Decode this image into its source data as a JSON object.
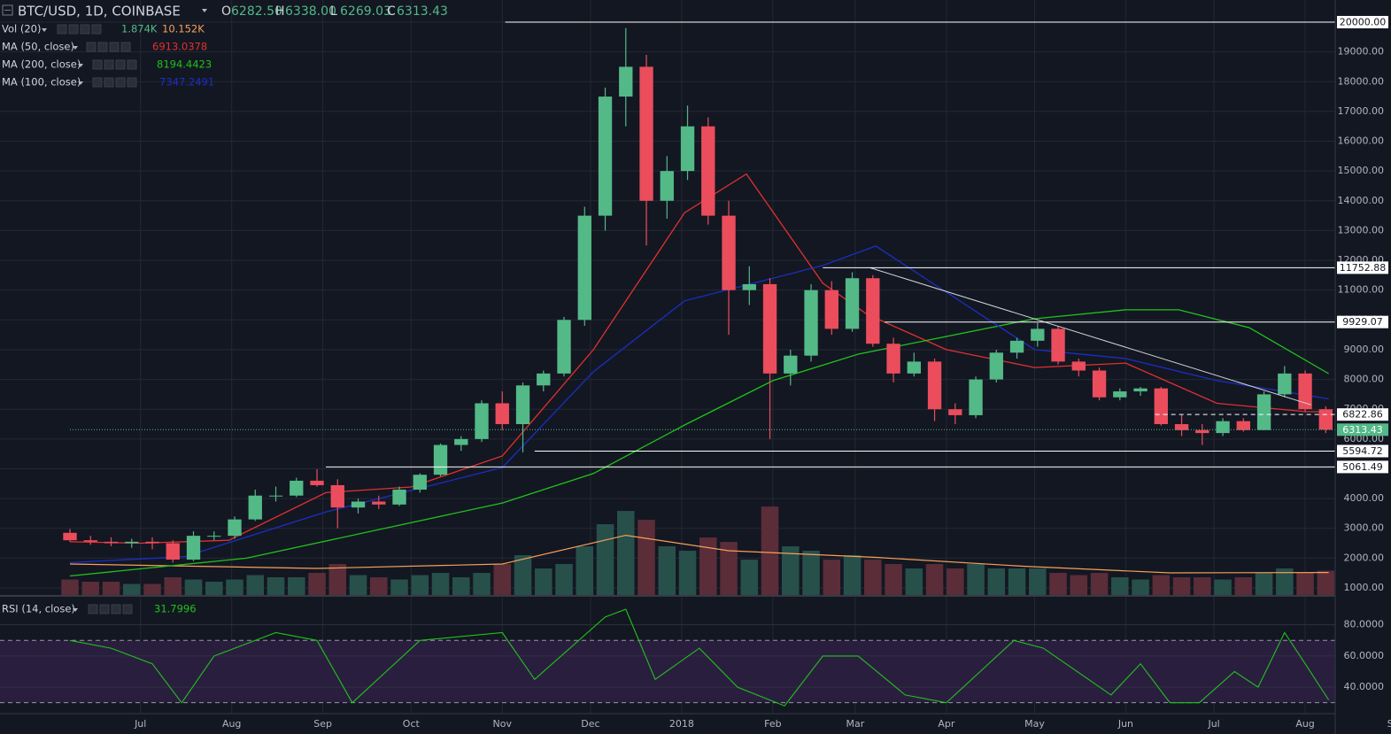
{
  "chart_data": {
    "type": "candlestick",
    "header": {
      "symbol": "BTC/USD, 1D, COINBASE",
      "ohlc": [
        {
          "key": "O",
          "text": "6282.50"
        },
        {
          "key": "H",
          "text": "6338.00"
        },
        {
          "key": "L",
          "text": "6269.03"
        },
        {
          "key": "C",
          "text": "6313.43"
        }
      ]
    },
    "xlim": [
      -24,
      430
    ],
    "xticks": [
      {
        "value": 0,
        "label": "Jul"
      },
      {
        "value": 31,
        "label": "Aug"
      },
      {
        "value": 62,
        "label": "Sep"
      },
      {
        "value": 92,
        "label": "Oct"
      },
      {
        "value": 123,
        "label": "Nov"
      },
      {
        "value": 153,
        "label": "Dec"
      },
      {
        "value": 184,
        "label": "2018"
      },
      {
        "value": 215,
        "label": "Feb"
      },
      {
        "value": 243,
        "label": "Mar"
      },
      {
        "value": 274,
        "label": "Apr"
      },
      {
        "value": 304,
        "label": "May"
      },
      {
        "value": 335,
        "label": "Jun"
      },
      {
        "value": 365,
        "label": "Jul"
      },
      {
        "value": 396,
        "label": "Aug"
      },
      {
        "value": 427,
        "label": "Sep"
      }
    ],
    "ylim": [
      762,
      20743
    ],
    "yticks": [
      {
        "value": 1000,
        "label": "1000.00"
      },
      {
        "value": 2000,
        "label": "2000.00"
      },
      {
        "value": 3000,
        "label": "3000.00"
      },
      {
        "value": 4000,
        "label": "4000.00"
      },
      {
        "value": 5000,
        "label": "5000.00"
      },
      {
        "value": 6000,
        "label": "6000.00"
      },
      {
        "value": 7000,
        "label": "7000.00"
      },
      {
        "value": 8000,
        "label": "8000.00"
      },
      {
        "value": 9000,
        "label": "9000.00"
      },
      {
        "value": 10000,
        "label": "10000.00"
      },
      {
        "value": 11000,
        "label": "11000.00"
      },
      {
        "value": 12000,
        "label": "12000.00"
      },
      {
        "value": 13000,
        "label": "13000.00"
      },
      {
        "value": 14000,
        "label": "14000.00"
      },
      {
        "value": 15000,
        "label": "15000.00"
      },
      {
        "value": 16000,
        "label": "16000.00"
      },
      {
        "value": 17000,
        "label": "17000.00"
      },
      {
        "value": 18000,
        "label": "18000.00"
      },
      {
        "value": 19000,
        "label": "19000.00"
      },
      {
        "value": 20000,
        "label": "20000.00"
      }
    ],
    "grid": true,
    "candles": {
      "up_color": "#53b987",
      "down_color": "#eb4d5c",
      "x": [
        -24,
        -17,
        -10,
        -3,
        4,
        11,
        18,
        25,
        32,
        39,
        46,
        53,
        60,
        67,
        74,
        81,
        88,
        95,
        102,
        109,
        116,
        123,
        130,
        137,
        144,
        151,
        158,
        165,
        172,
        179,
        186,
        193,
        200,
        207,
        214,
        221,
        228,
        235,
        242,
        249,
        256,
        263,
        270,
        277,
        284,
        291,
        298,
        305,
        312,
        319,
        326,
        333,
        340,
        347,
        354,
        361,
        368,
        375,
        382,
        389,
        396,
        403
      ],
      "ohlc": [
        [
          2850,
          2980,
          2550,
          2600
        ],
        [
          2600,
          2750,
          2450,
          2550
        ],
        [
          2550,
          2700,
          2400,
          2500
        ],
        [
          2500,
          2650,
          2350,
          2550
        ],
        [
          2550,
          2700,
          2300,
          2500
        ],
        [
          2500,
          2600,
          1850,
          1950
        ],
        [
          1950,
          2900,
          1900,
          2750
        ],
        [
          2750,
          2900,
          2600,
          2750
        ],
        [
          2750,
          3400,
          2650,
          3300
        ],
        [
          3300,
          4300,
          3250,
          4100
        ],
        [
          4100,
          4400,
          3900,
          4100
        ],
        [
          4100,
          4700,
          4050,
          4600
        ],
        [
          4600,
          4990,
          4400,
          4450
        ],
        [
          4450,
          4650,
          3000,
          3700
        ],
        [
          3700,
          4000,
          3500,
          3900
        ],
        [
          3900,
          4100,
          3650,
          3800
        ],
        [
          3800,
          4400,
          3750,
          4300
        ],
        [
          4300,
          4850,
          4200,
          4800
        ],
        [
          4800,
          5850,
          4750,
          5800
        ],
        [
          5800,
          6100,
          5600,
          6000
        ],
        [
          6000,
          7300,
          5900,
          7200
        ],
        [
          7200,
          7600,
          6300,
          6500
        ],
        [
          6500,
          7900,
          5550,
          7800
        ],
        [
          7800,
          8300,
          7600,
          8200
        ],
        [
          8200,
          10100,
          8100,
          10000
        ],
        [
          10000,
          13800,
          9800,
          13500
        ],
        [
          13500,
          17800,
          13000,
          17500
        ],
        [
          17500,
          19800,
          16500,
          18500
        ],
        [
          18500,
          18900,
          12500,
          14000
        ],
        [
          14000,
          15500,
          13400,
          15000
        ],
        [
          15000,
          17200,
          14700,
          16500
        ],
        [
          16500,
          16800,
          13200,
          13500
        ],
        [
          13500,
          14000,
          9500,
          11000
        ],
        [
          11000,
          11800,
          10500,
          11200
        ],
        [
          11200,
          11400,
          6000,
          8200
        ],
        [
          8200,
          9000,
          7800,
          8800
        ],
        [
          8800,
          11200,
          8600,
          11000
        ],
        [
          11000,
          11300,
          9500,
          9700
        ],
        [
          9700,
          11600,
          9600,
          11400
        ],
        [
          11400,
          11500,
          9100,
          9200
        ],
        [
          9200,
          9400,
          7900,
          8200
        ],
        [
          8200,
          8900,
          8100,
          8600
        ],
        [
          8600,
          8700,
          6600,
          7000
        ],
        [
          7000,
          7200,
          6500,
          6800
        ],
        [
          6800,
          8100,
          6700,
          8000
        ],
        [
          8000,
          9000,
          7900,
          8900
        ],
        [
          8900,
          9400,
          8700,
          9300
        ],
        [
          9300,
          9900,
          9100,
          9700
        ],
        [
          9700,
          9800,
          8500,
          8600
        ],
        [
          8600,
          8700,
          8100,
          8300
        ],
        [
          8300,
          8400,
          7300,
          7400
        ],
        [
          7400,
          7700,
          7300,
          7600
        ],
        [
          7600,
          7750,
          7450,
          7700
        ],
        [
          7700,
          7750,
          6450,
          6500
        ],
        [
          6500,
          6800,
          6100,
          6300
        ],
        [
          6300,
          6500,
          5800,
          6200
        ],
        [
          6200,
          6700,
          6100,
          6600
        ],
        [
          6600,
          6700,
          6250,
          6300
        ],
        [
          6300,
          7600,
          6300,
          7500
        ],
        [
          7500,
          8450,
          7400,
          8200
        ],
        [
          8200,
          8300,
          6900,
          7000
        ],
        [
          7000,
          7100,
          6200,
          6313.43
        ]
      ]
    },
    "volume": {
      "name": "Vol (20)",
      "labels": [
        "1.874K",
        "10.152K"
      ],
      "label_colors": [
        "#53b987",
        "#f5a05a"
      ],
      "vlim": [
        0,
        269
      ],
      "up_color": "#27504a",
      "down_color": "#5a2d38",
      "values": [
        7,
        6,
        6,
        5,
        5,
        8,
        7,
        6,
        7,
        9,
        8,
        8,
        10,
        14,
        9,
        8,
        7,
        9,
        10,
        8,
        10,
        14,
        18,
        12,
        14,
        22,
        32,
        38,
        34,
        22,
        20,
        26,
        24,
        16,
        40,
        22,
        20,
        16,
        18,
        16,
        14,
        12,
        14,
        12,
        14,
        12,
        12,
        12,
        10,
        9,
        10,
        8,
        7,
        9,
        8,
        8,
        7,
        8,
        10,
        12,
        10,
        11
      ],
      "ma": {
        "color": "#f5a05a",
        "x": [
          -24,
          60,
          123,
          165,
          200,
          250,
          300,
          350,
          404
        ],
        "values": [
          14,
          12,
          14,
          27,
          20,
          17,
          13,
          10,
          10.152
        ]
      }
    },
    "series": [
      {
        "name": "MA (50, close)",
        "color": "#e0312f",
        "value_label": "6913.0378",
        "x": [
          -24,
          0,
          30,
          63,
          92,
          123,
          154,
          185,
          206,
          232,
          247,
          274,
          304,
          335,
          366,
          396,
          404
        ],
        "values": [
          2550,
          2500,
          2600,
          4200,
          4390,
          5430,
          9000,
          13600,
          14900,
          11230,
          10190,
          9000,
          8400,
          8550,
          7200,
          6920,
          6913.0378
        ]
      },
      {
        "name": "MA (200, close)",
        "color": "#21c21b",
        "value_label": "8194.4423",
        "x": [
          -24,
          36,
          123,
          154,
          185,
          215,
          244,
          304,
          335,
          353,
          377,
          404
        ],
        "values": [
          1400,
          2000,
          3850,
          4840,
          6470,
          7960,
          8850,
          10040,
          10340,
          10340,
          9740,
          8194.4423
        ]
      },
      {
        "name": "MA (100, close)",
        "color": "#1b2fc4",
        "value_label": "7347.2491",
        "x": [
          -24,
          15,
          63,
          123,
          154,
          185,
          232,
          250,
          274,
          304,
          335,
          366,
          404
        ],
        "values": [
          1850,
          2050,
          3550,
          5040,
          8260,
          10640,
          11830,
          12480,
          10930,
          9000,
          8700,
          7960,
          7347.2491
        ]
      }
    ],
    "levels": [
      {
        "value": 20000,
        "label": "20000.00",
        "from": 124,
        "style": "solid"
      },
      {
        "value": 11752.88,
        "label": "11752.88",
        "from": 232,
        "style": "solid"
      },
      {
        "value": 9929.07,
        "label": "9929.07",
        "from": 253,
        "style": "solid"
      },
      {
        "value": 6822.86,
        "label": "6822.86",
        "from": 345,
        "style": "dashed"
      },
      {
        "value": 6313.43,
        "label": "6313.43",
        "from": -24,
        "style": "current"
      },
      {
        "value": 5594.72,
        "label": "5594.72",
        "from": 134,
        "style": "solid"
      },
      {
        "value": 5061.49,
        "label": "5061.49",
        "from": 63,
        "style": "solid"
      }
    ],
    "trendline": {
      "x": [
        248,
        398
      ],
      "values": [
        11752.88,
        7150
      ]
    },
    "rsi": {
      "name": "RSI (14, close)",
      "value_label": "31.7996",
      "color": "#21c21b",
      "ylim": [
        23,
        98
      ],
      "yticks": [
        {
          "value": 40,
          "label": "40.0000"
        },
        {
          "value": 60,
          "label": "60.0000"
        },
        {
          "value": 80,
          "label": "80.0000"
        }
      ],
      "bands": [
        30,
        70
      ],
      "x": [
        -24,
        -10,
        4,
        14,
        25,
        46,
        60,
        72,
        95,
        123,
        134,
        158,
        165,
        175,
        190,
        203,
        219,
        232,
        244,
        260,
        274,
        297,
        307,
        330,
        340,
        350,
        360,
        372,
        380,
        389,
        396,
        404
      ],
      "values": [
        70,
        65,
        55,
        30,
        60,
        75,
        70,
        30,
        70,
        75,
        45,
        85,
        90,
        45,
        65,
        40,
        28,
        60,
        60,
        35,
        30,
        70,
        65,
        35,
        55,
        30,
        30,
        50,
        40,
        75,
        55,
        31.7996
      ]
    }
  }
}
